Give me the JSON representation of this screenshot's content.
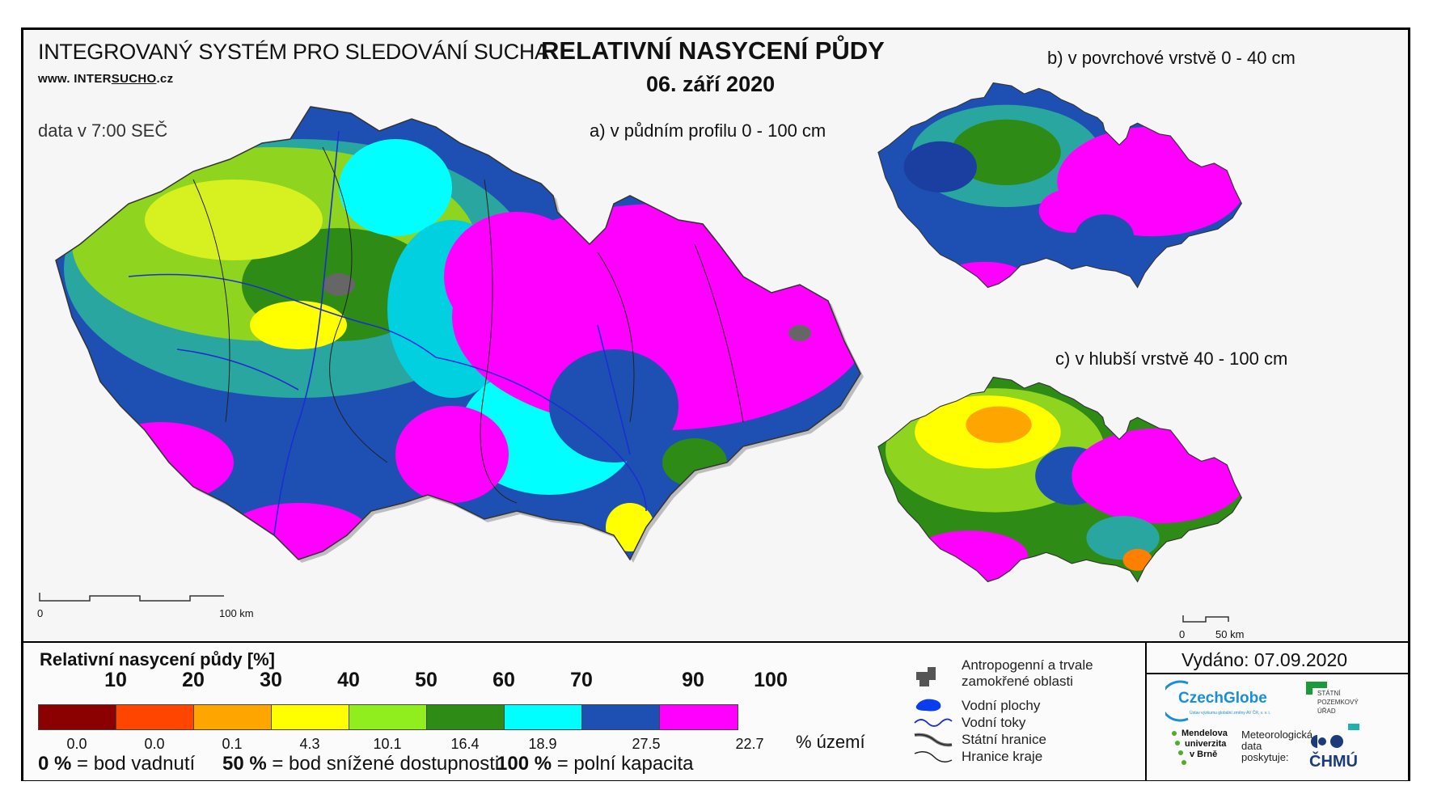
{
  "header": {
    "system_title": "INTEGROVANÝ SYSTÉM PRO SLEDOVÁNÍ SUCHA",
    "website_prefix": "www. INTER",
    "website_highlight": "SUCHO",
    "website_suffix": ".cz",
    "data_time": "data v 7:00 SEČ",
    "main_title": "RELATIVNÍ NASYCENÍ PŮDY",
    "date": "06. září 2020"
  },
  "maps": {
    "a_label": "a) v půdním profilu 0 - 100 cm",
    "b_label": "b) v povrchové vrstvě 0 - 40 cm",
    "c_label": "c) v hlubší vrstvě 40 - 100 cm",
    "scale_main": {
      "start": "0",
      "end": "100 km"
    },
    "scale_small": {
      "start": "0",
      "end": "50 km"
    }
  },
  "legend": {
    "title": "Relativní nasycení půdy [%]",
    "thresholds": [
      "10",
      "20",
      "30",
      "40",
      "50",
      "60",
      "70",
      "90",
      "100"
    ],
    "colors": [
      "#8b0000",
      "#ff4500",
      "#ffa500",
      "#ffff00",
      "#90ee1f",
      "#2e8b16",
      "#00ffff",
      "#1e50b4",
      "#ff00ff"
    ],
    "area_percent": [
      "0.0",
      "0.0",
      "0.1",
      "4.3",
      "10.1",
      "16.4",
      "18.9",
      "27.5",
      "22.7"
    ],
    "area_unit": "% území",
    "note_1_value": "0 %",
    "note_1_text": " = bod vadnutí",
    "note_2_value": "50 %",
    "note_2_text": " = bod snížené dostupnosti",
    "note_3_value": "100 %",
    "note_3_text": " = polní kapacita"
  },
  "symbols": {
    "anthropogenic_1": "Antropogenní a trvale",
    "anthropogenic_2": "zamokřené oblasti",
    "water_bodies": "Vodní plochy",
    "rivers": "Vodní toky",
    "state_border": "Státní hranice",
    "region_border": "Hranice kraje"
  },
  "footer": {
    "issued": "Vydáno: 07.09.2020",
    "czechglobe": "CzechGlobe",
    "czechglobe_sub": "Ústav výzkumu globální změny AV ČR, v. v. i.",
    "spu_1": "STÁTNÍ",
    "spu_2": "POZEMKOVÝ",
    "spu_3": "ÚŘAD",
    "mendel_1": "Mendelova",
    "mendel_2": "univerzita",
    "mendel_3": "v Brně",
    "meteo_1": "Meteorologická",
    "meteo_2": "data",
    "meteo_3": "poskytuje:",
    "chmu": "ČHMÚ"
  }
}
